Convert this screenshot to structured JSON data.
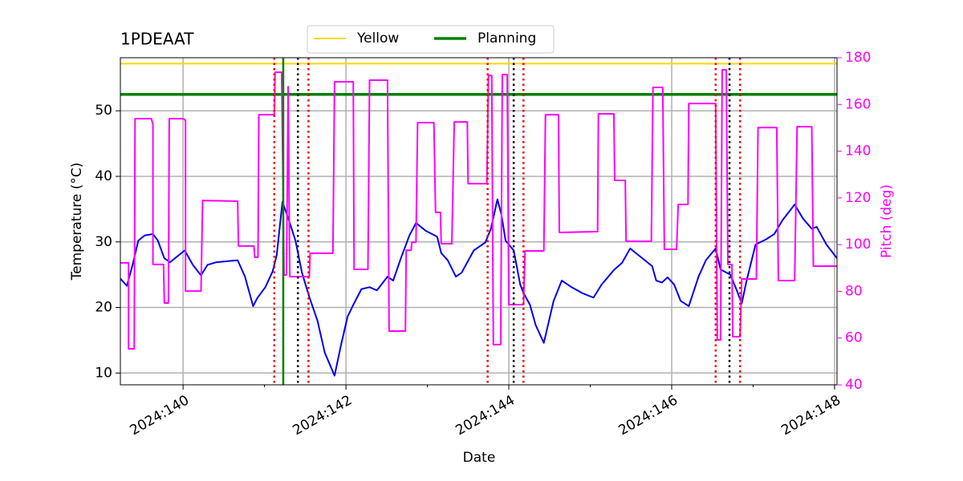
{
  "chart_data": {
    "type": "line",
    "title": "1PDEAAT",
    "xlabel": "Date",
    "ylabel": "Temperature (°C)",
    "y2label": "Pitch (deg)",
    "xlim": [
      139.23,
      148.03
    ],
    "ylim": [
      8.2,
      58.1
    ],
    "y2lim": [
      40,
      180
    ],
    "xticks": [
      {
        "value": 140,
        "label": "2024:140"
      },
      {
        "value": 142,
        "label": "2024:142"
      },
      {
        "value": 144,
        "label": "2024:144"
      },
      {
        "value": 146,
        "label": "2024:146"
      },
      {
        "value": 148,
        "label": "2024:148"
      }
    ],
    "xminorticks": [
      141,
      143,
      145,
      147
    ],
    "yticks": [
      10,
      20,
      30,
      40,
      50
    ],
    "y2ticks": [
      40,
      60,
      80,
      100,
      120,
      140,
      160,
      180
    ],
    "y2color": "#ff00ff",
    "grid": true,
    "legend": "upper center",
    "series": [
      {
        "color": "#0000ee",
        "x": [
          139.23,
          139.31,
          139.38,
          139.45,
          139.53,
          139.63,
          139.69,
          139.77,
          139.84,
          139.92,
          140.02,
          140.12,
          140.22,
          140.3,
          140.41,
          140.67,
          140.76,
          140.86,
          140.91,
          141.01,
          141.1,
          141.15,
          141.22,
          141.3,
          141.38,
          141.46,
          141.55,
          141.65,
          141.74,
          141.86,
          141.94,
          142.02,
          142.09,
          142.19,
          142.29,
          142.38,
          142.51,
          142.58,
          142.68,
          142.78,
          142.86,
          142.98,
          143.12,
          143.17,
          143.25,
          143.35,
          143.42,
          143.57,
          143.71,
          143.78,
          143.86,
          143.91,
          143.96,
          144.06,
          144.14,
          144.18,
          144.26,
          144.33,
          144.43,
          144.55,
          144.65,
          144.77,
          144.9,
          145.04,
          145.14,
          145.29,
          145.39,
          145.49,
          145.59,
          145.76,
          145.81,
          145.88,
          145.95,
          146.03,
          146.11,
          146.21,
          146.33,
          146.42,
          146.54,
          146.6,
          146.72,
          146.8,
          146.86,
          146.92,
          147.03,
          147.16,
          147.26,
          147.36,
          147.51,
          147.61,
          147.72,
          147.78,
          147.9,
          148.03
        ],
        "values": [
          24.4,
          23.3,
          26.5,
          30.2,
          31.0,
          31.2,
          30.2,
          27.5,
          26.9,
          27.7,
          28.7,
          26.5,
          24.9,
          26.5,
          26.9,
          27.2,
          24.7,
          20.2,
          21.4,
          23.1,
          25.5,
          28.0,
          36.1,
          33.3,
          30.2,
          25.3,
          21.6,
          18.0,
          13.1,
          9.6,
          14.3,
          18.6,
          20.4,
          22.8,
          23.1,
          22.6,
          24.7,
          24.1,
          27.7,
          31.0,
          32.9,
          31.7,
          30.8,
          28.3,
          27.2,
          24.7,
          25.3,
          28.7,
          29.9,
          32.0,
          36.5,
          34.1,
          30.2,
          28.7,
          23.5,
          22.2,
          20.4,
          17.3,
          14.6,
          21.0,
          24.1,
          23.1,
          22.2,
          21.5,
          23.5,
          25.7,
          26.8,
          29.0,
          28.0,
          26.3,
          24.1,
          23.8,
          24.6,
          23.5,
          21.0,
          20.2,
          24.7,
          27.2,
          29.0,
          25.8,
          25.0,
          22.6,
          20.6,
          24.1,
          29.6,
          30.4,
          31.2,
          33.3,
          35.7,
          33.6,
          32.0,
          32.3,
          29.6,
          27.5
        ]
      },
      {
        "color": "#ff00ff",
        "axis": "y2",
        "x": [
          139.23,
          139.33,
          139.33,
          139.4,
          139.41,
          139.61,
          139.63,
          139.63,
          139.76,
          139.77,
          139.82,
          139.83,
          140.0,
          140.03,
          140.03,
          140.22,
          140.24,
          140.67,
          140.68,
          140.87,
          140.88,
          140.92,
          140.93,
          141.12,
          141.13,
          141.21,
          141.24,
          141.27,
          141.29,
          141.31,
          141.55,
          141.56,
          141.84,
          141.86,
          142.09,
          142.1,
          142.27,
          142.29,
          142.51,
          142.53,
          142.73,
          142.74,
          142.8,
          142.81,
          142.86,
          142.88,
          143.08,
          143.1,
          143.16,
          143.17,
          143.3,
          143.33,
          143.49,
          143.5,
          143.73,
          143.75,
          143.79,
          143.81,
          143.9,
          143.92,
          143.98,
          144.0,
          144.18,
          144.2,
          144.43,
          144.45,
          144.61,
          144.62,
          145.09,
          145.1,
          145.29,
          145.3,
          145.43,
          145.44,
          145.75,
          145.77,
          145.89,
          145.91,
          146.06,
          146.08,
          146.2,
          146.21,
          146.54,
          146.56,
          146.6,
          146.62,
          146.67,
          146.69,
          146.74,
          146.75,
          146.84,
          146.86,
          147.04,
          147.06,
          147.29,
          147.31,
          147.51,
          147.54,
          147.72,
          147.74,
          148.03
        ],
        "values": [
          92.2,
          92.2,
          55.4,
          55.4,
          153.9,
          153.9,
          151.5,
          91.5,
          91.5,
          75.0,
          75.0,
          153.9,
          153.9,
          153.2,
          80.1,
          80.1,
          118.9,
          118.6,
          99.4,
          99.4,
          94.6,
          94.6,
          155.6,
          155.6,
          173.8,
          173.8,
          87.0,
          87.0,
          167.6,
          86.3,
          86.3,
          96.3,
          96.3,
          169.7,
          169.7,
          89.4,
          89.4,
          170.4,
          170.4,
          63.0,
          63.0,
          97.6,
          97.6,
          101.1,
          101.1,
          152.2,
          152.2,
          113.8,
          113.8,
          100.4,
          100.4,
          152.5,
          152.5,
          126.1,
          126.1,
          172.4,
          172.4,
          57.2,
          57.2,
          172.8,
          172.8,
          74.3,
          74.3,
          97.3,
          97.3,
          155.6,
          155.6,
          105.2,
          105.6,
          156.0,
          156.0,
          127.5,
          127.5,
          101.4,
          101.4,
          167.3,
          167.3,
          98.0,
          98.0,
          117.2,
          117.2,
          160.4,
          160.4,
          59.2,
          59.2,
          174.8,
          174.8,
          91.5,
          91.5,
          60.6,
          60.6,
          85.3,
          85.3,
          150.1,
          150.1,
          84.6,
          84.6,
          150.5,
          150.5,
          90.8,
          90.8
        ]
      }
    ],
    "hlines": [
      {
        "name": "Yellow",
        "value": 57.2,
        "color": "#ffd700"
      },
      {
        "name": "Planning",
        "value": 52.5,
        "color": "#008000"
      }
    ],
    "vlines": [
      {
        "value": 141.23,
        "color": "#008000",
        "style": "solid"
      },
      {
        "value": 141.12,
        "color": "#ee0000",
        "style": "dotted"
      },
      {
        "value": 141.54,
        "color": "#ee0000",
        "style": "dotted"
      },
      {
        "value": 143.74,
        "color": "#ee0000",
        "style": "dotted"
      },
      {
        "value": 144.18,
        "color": "#ee0000",
        "style": "dotted"
      },
      {
        "value": 146.54,
        "color": "#ee0000",
        "style": "dotted"
      },
      {
        "value": 146.84,
        "color": "#ee0000",
        "style": "dotted"
      },
      {
        "value": 141.41,
        "color": "#000000",
        "style": "dotted"
      },
      {
        "value": 144.06,
        "color": "#000000",
        "style": "dotted"
      },
      {
        "value": 146.71,
        "color": "#000000",
        "style": "dotted"
      }
    ]
  }
}
